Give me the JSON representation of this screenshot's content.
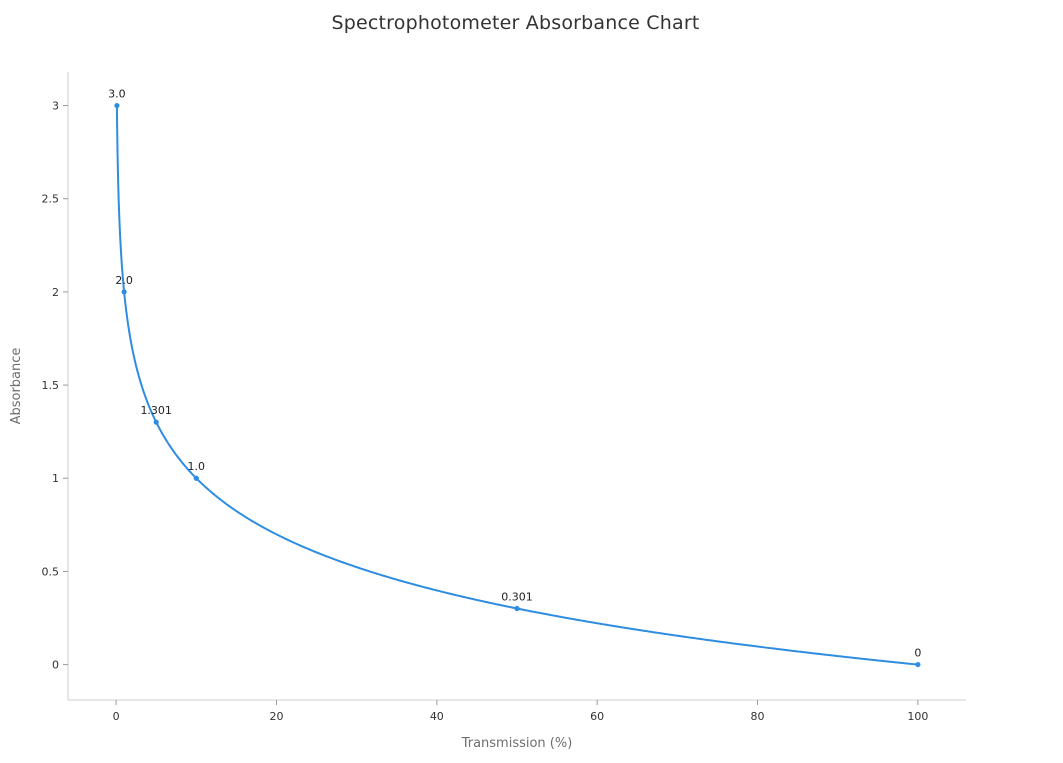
{
  "chart_data": {
    "type": "line",
    "title": "Spectrophotometer Absorbance Chart",
    "xlabel": "Transmission (%)",
    "ylabel": "Absorbance",
    "xlim": [
      -6,
      106
    ],
    "ylim": [
      -0.19,
      3.18
    ],
    "x_ticks": [
      0,
      20,
      40,
      60,
      80,
      100
    ],
    "x_tick_labels": [
      "0",
      "20",
      "40",
      "60",
      "80",
      "100"
    ],
    "y_ticks": [
      0,
      0.5,
      1,
      1.5,
      2,
      2.5,
      3
    ],
    "y_tick_labels": [
      "0",
      "0.5",
      "1",
      "1.5",
      "2",
      "2.5",
      "3"
    ],
    "grid": false,
    "series": [
      {
        "color": "#2e8de0",
        "smooth": true,
        "points": [
          {
            "x": 0.1,
            "y": 3.0,
            "label": "3.0"
          },
          {
            "x": 1,
            "y": 2.0,
            "label": "2.0"
          },
          {
            "x": 5,
            "y": 1.301,
            "label": "1.301"
          },
          {
            "x": 10,
            "y": 1.0,
            "label": "1.0"
          },
          {
            "x": 50,
            "y": 0.301,
            "label": "0.301"
          },
          {
            "x": 100,
            "y": 0,
            "label": "0"
          }
        ]
      }
    ]
  }
}
